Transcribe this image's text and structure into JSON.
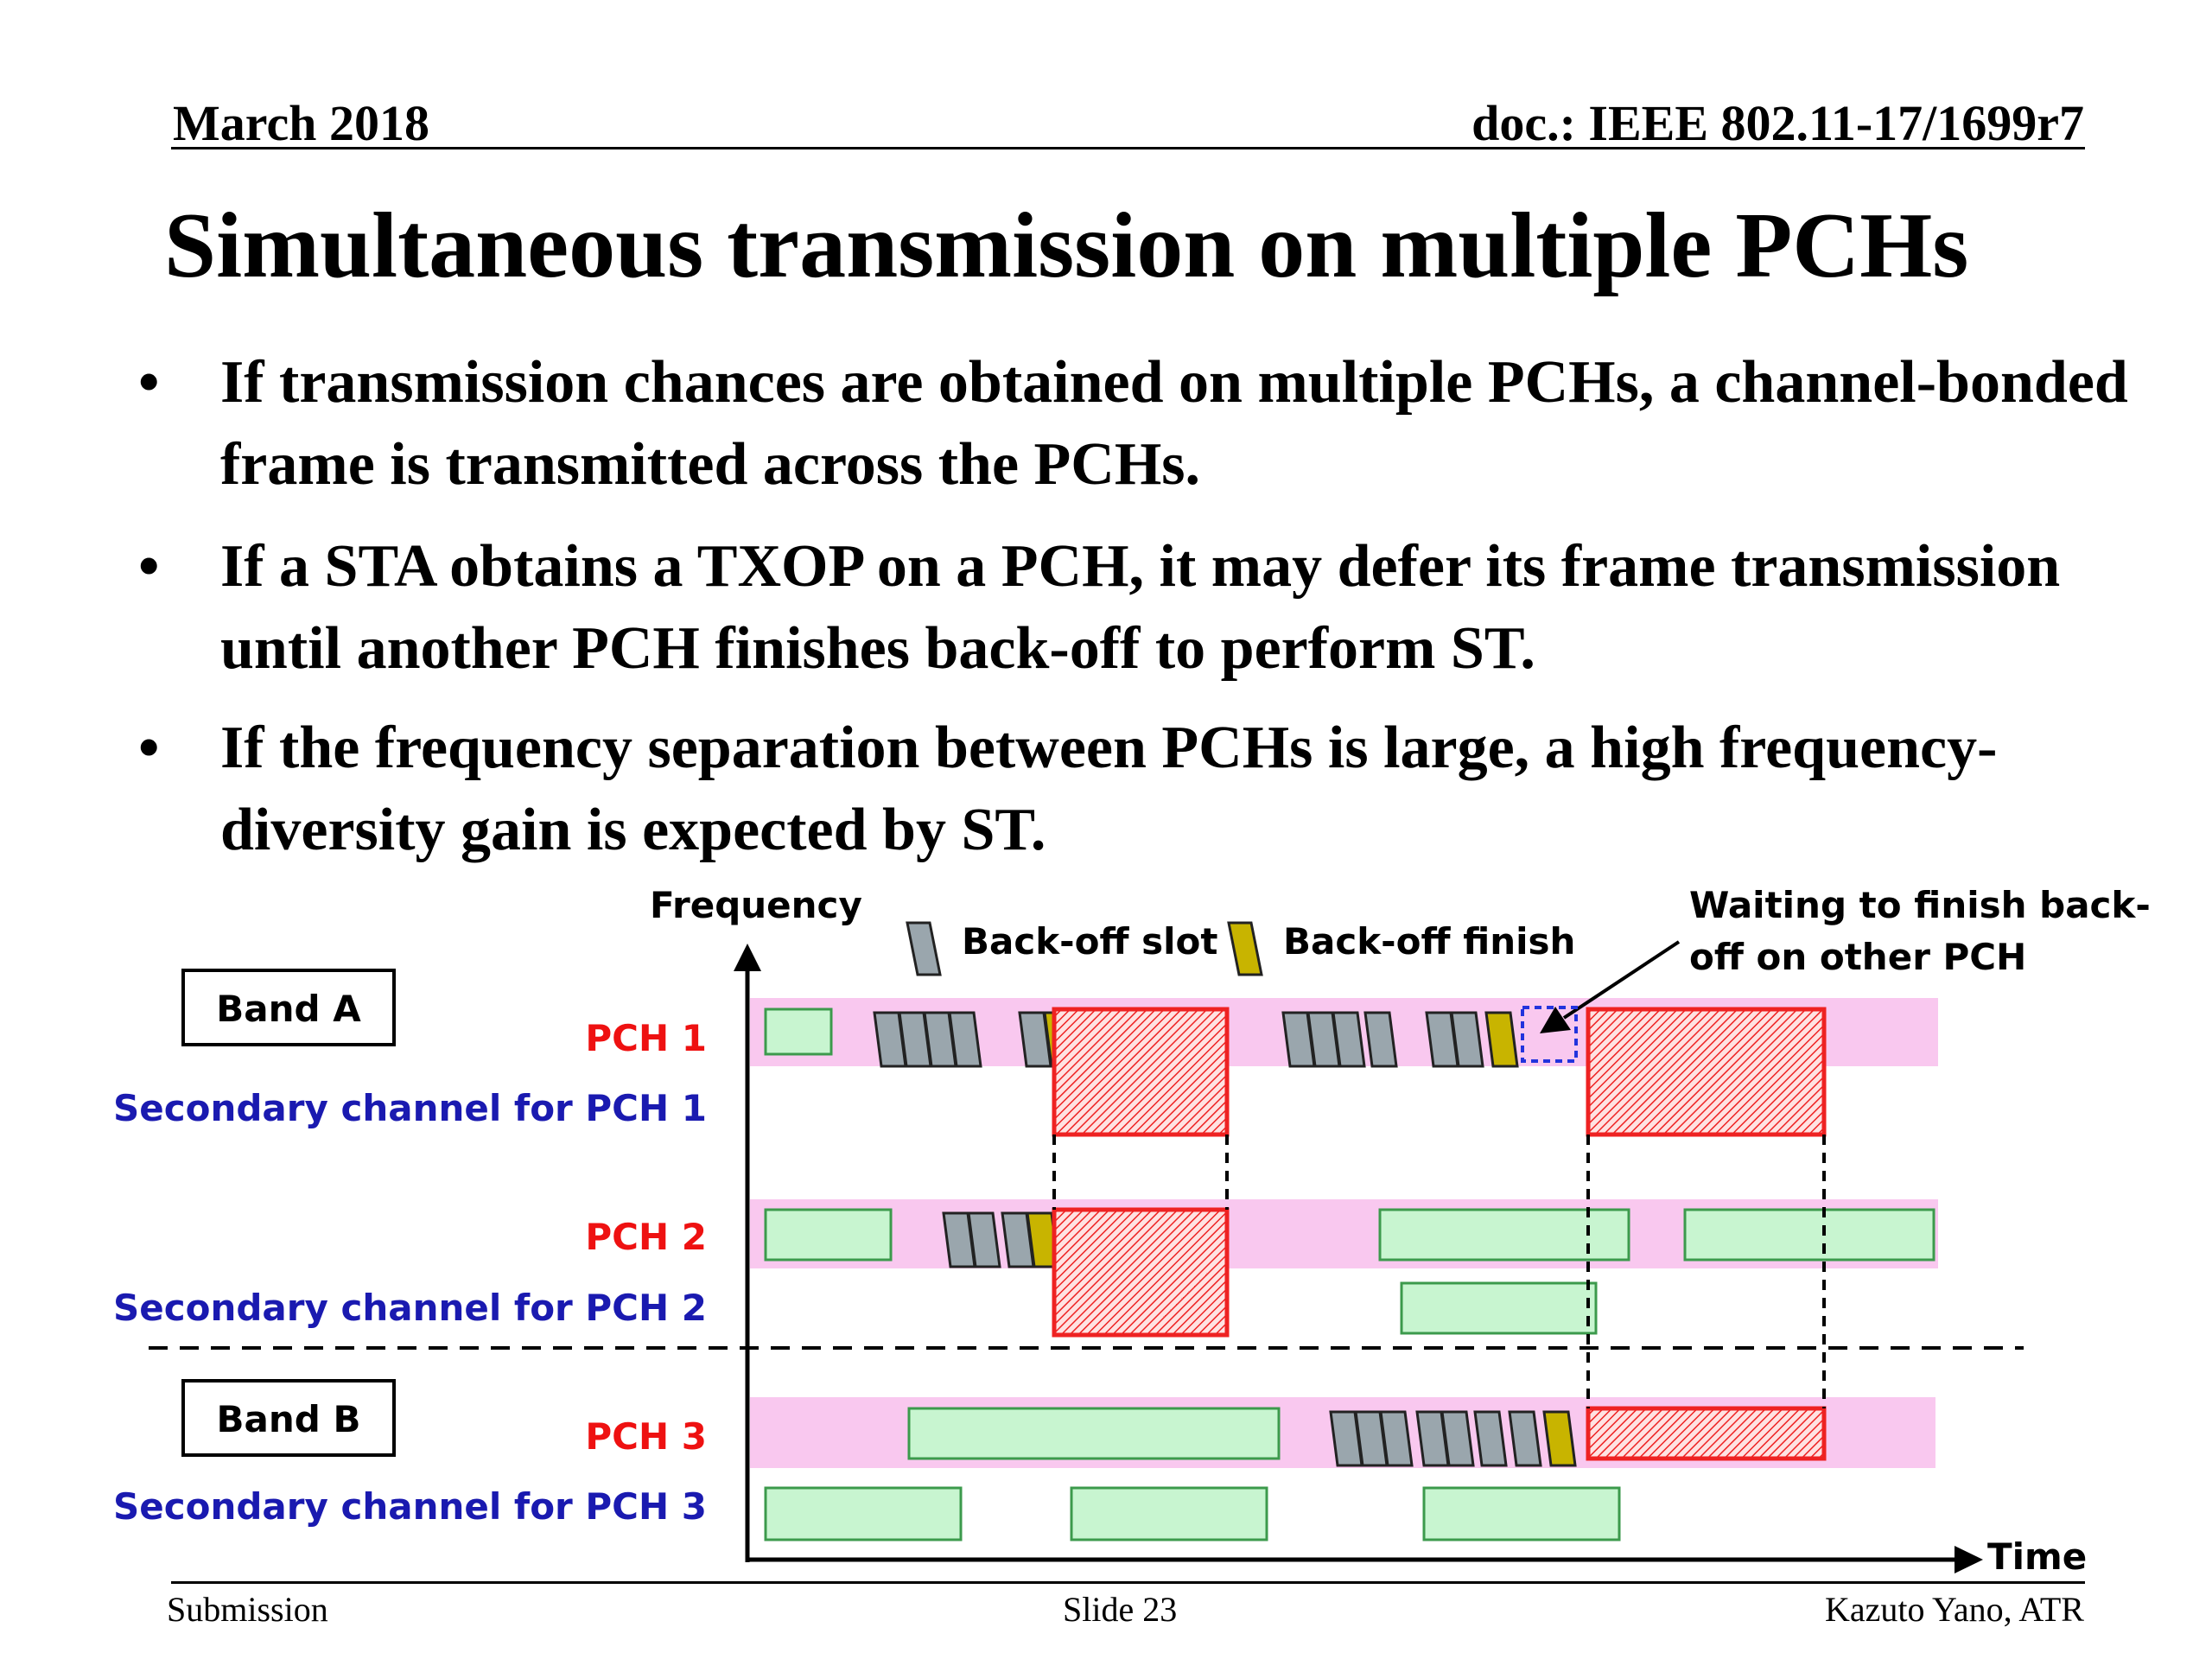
{
  "header": {
    "date": "March 2018",
    "doc": "doc.: IEEE 802.11-17/1699r7"
  },
  "title": "Simultaneous transmission on multiple PCHs",
  "bullets": [
    {
      "symbol": "•",
      "text": "If transmission chances are obtained on multiple PCHs, a channel-bonded frame is transmitted across the PCHs."
    },
    {
      "symbol": "•",
      "text": "If a STA obtains a TXOP on a PCH, it may defer its frame transmission until another PCH finishes back-off to perform ST."
    },
    {
      "symbol": "•",
      "text": "If the frequency separation between PCHs is large, a high frequency-diversity gain is expected by ST."
    }
  ],
  "diagram": {
    "axis_y_label": "Frequency",
    "axis_x_label": "Time",
    "legend": {
      "slot_label": "Back-off slot",
      "finish_label": "Back-off finish",
      "waiting_line1": "Waiting to finish back-",
      "waiting_line2": "off on other PCH"
    },
    "band_a": "Band A",
    "band_b": "Band B",
    "channels": {
      "pch1": "PCH 1",
      "sec1": "Secondary channel for PCH 1",
      "pch2": "PCH 2",
      "sec2": "Secondary channel for PCH 2",
      "pch3": "PCH 3",
      "sec3": "Secondary channel for PCH 3"
    },
    "colors": {
      "pch_red": "#ee1111",
      "secondary_blue": "#1a1ab0",
      "pch_band": "#f9c8ef",
      "busy_fill": "#c8f5d0",
      "busy_stroke": "#3c9a4c",
      "slot_fill": "#9aa6ad",
      "finish_fill": "#c8b400",
      "tx_red": "#ee2222",
      "wait_blue": "#2233dd"
    }
  },
  "footer": {
    "left": "Submission",
    "center": "Slide 23",
    "right": "Kazuto Yano, ATR"
  }
}
